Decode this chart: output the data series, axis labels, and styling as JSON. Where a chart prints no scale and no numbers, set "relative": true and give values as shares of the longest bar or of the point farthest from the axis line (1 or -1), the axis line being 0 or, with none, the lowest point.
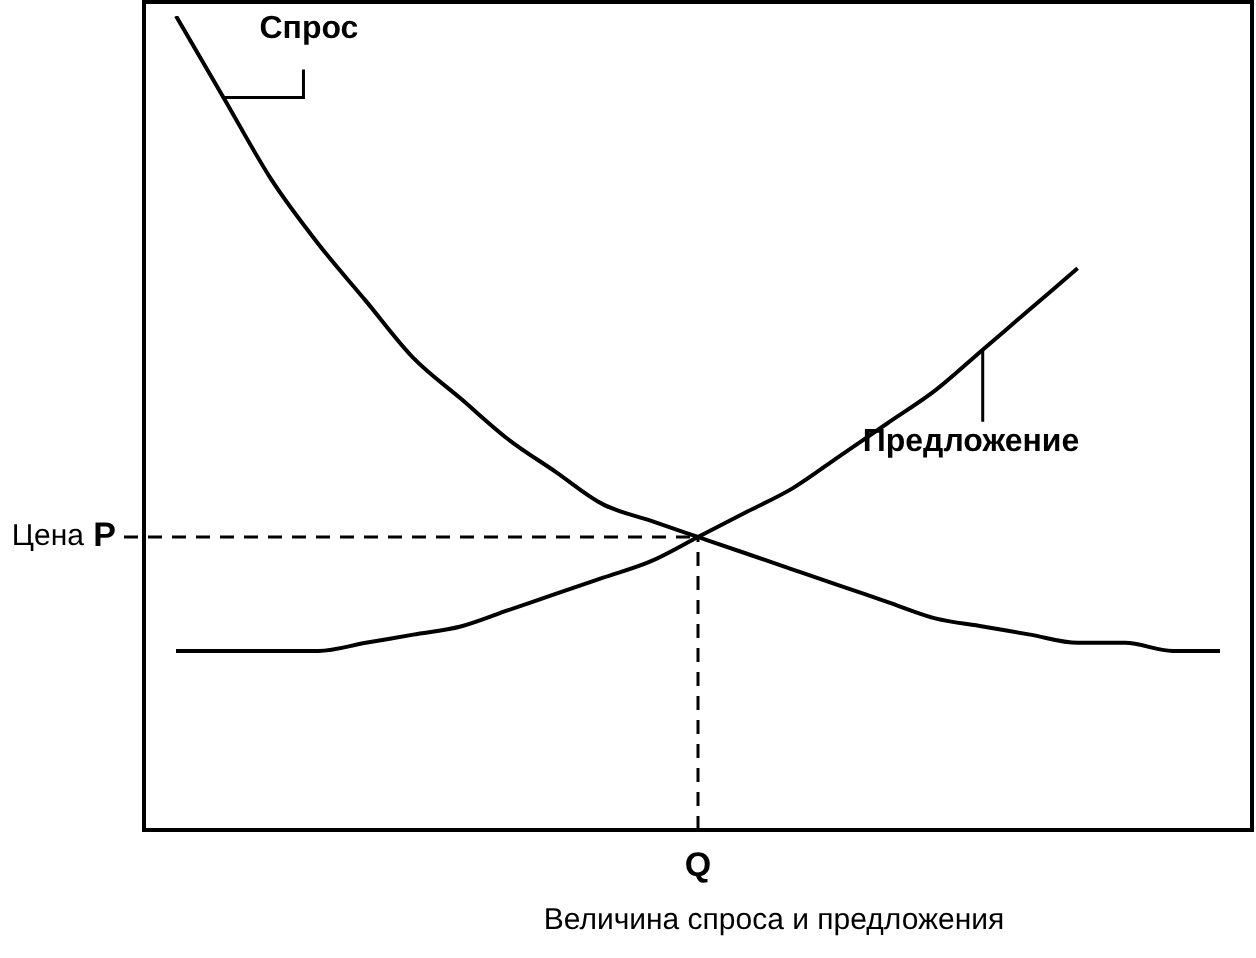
{
  "chart_data": {
    "type": "line",
    "relative": true,
    "xlabel": "Величина спроса и предложения",
    "ylabel": "Цена",
    "categories": [
      null,
      null,
      null,
      null,
      null,
      null,
      null,
      null,
      null,
      null,
      null,
      null,
      null,
      null,
      null,
      null,
      null,
      null,
      null,
      null,
      null,
      null,
      null
    ],
    "series": [
      {
        "name": "Спрос",
        "color": "#000000",
        "values": [
          1.0,
          0.9,
          0.8,
          0.72,
          0.65,
          0.58,
          0.53,
          0.48,
          0.44,
          0.4,
          0.38,
          0.36,
          0.34,
          0.32,
          0.3,
          0.28,
          0.26,
          0.25,
          0.24,
          0.23,
          0.23,
          0.22,
          0.22
        ]
      },
      {
        "name": "Предложение",
        "color": "#000000",
        "values": [
          0.22,
          0.22,
          0.22,
          0.22,
          0.23,
          0.24,
          0.25,
          0.27,
          0.29,
          0.31,
          0.33,
          0.36,
          0.39,
          0.42,
          0.46,
          0.5,
          0.54,
          0.59,
          0.64,
          0.69,
          null,
          null,
          null
        ]
      }
    ],
    "ref_lines": [
      {
        "axis": "y",
        "value": 0.36,
        "label": "P",
        "line_style": "dashed"
      }
    ],
    "annotations": [
      "Q"
    ],
    "grid": false,
    "legend": "right",
    "marker": "none",
    "line_style": "solid"
  }
}
